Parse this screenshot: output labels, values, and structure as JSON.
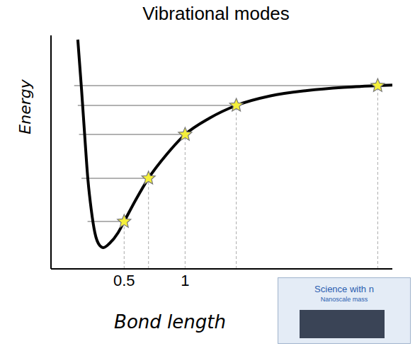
{
  "chart_data": {
    "type": "line",
    "title": "Vibrational modes",
    "x_label": "Bond length",
    "y_label": "Energy",
    "xlim": [
      -0.1,
      2.7
    ],
    "xticks": [
      0.5,
      1
    ],
    "ylim": [
      0,
      11
    ],
    "yticks": [],
    "tick_labels": "x",
    "grid": false,
    "curve": {
      "x": [
        0.12,
        0.15,
        0.18,
        0.2,
        0.23,
        0.26,
        0.3,
        0.33,
        0.38,
        0.45,
        0.5,
        0.6,
        0.7,
        0.85,
        1.0,
        1.2,
        1.42,
        1.7,
        2.0,
        2.3,
        2.58,
        2.7
      ],
      "values": [
        10.8,
        8.5,
        6.0,
        4.4,
        2.8,
        1.7,
        1.1,
        1.0,
        1.2,
        1.7,
        2.23,
        3.3,
        4.27,
        5.4,
        6.33,
        7.1,
        7.7,
        8.15,
        8.4,
        8.55,
        8.63,
        8.66
      ],
      "color": "#000000",
      "line_style": "solid"
    },
    "modes": {
      "x": [
        0.5,
        0.7,
        1.0,
        1.42,
        2.58
      ],
      "values": [
        2.23,
        4.27,
        6.33,
        7.7,
        8.63
      ],
      "color": "#f5f03a",
      "marker": "star"
    },
    "levels": {
      "values": [
        2.23,
        4.27,
        6.33,
        7.7,
        8.63
      ],
      "x_start": [
        0.2,
        0.15,
        0.13,
        0.12,
        0.09
      ],
      "x_end": [
        0.5,
        0.7,
        1.0,
        1.42,
        2.7
      ],
      "color": "#999999"
    },
    "inset": {
      "title": "Science with n",
      "subtitle": "Nanoscale mass"
    }
  }
}
